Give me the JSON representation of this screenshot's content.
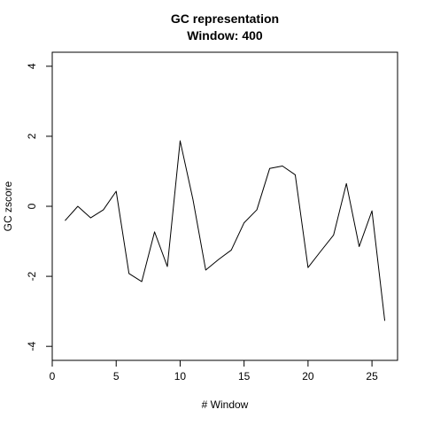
{
  "chart_data": {
    "type": "line",
    "title": "GC representation",
    "subtitle": "Window: 400",
    "xlabel": "# Window",
    "ylabel": "GC zscore",
    "xlim": [
      0,
      27
    ],
    "ylim": [
      -4.4,
      4.4
    ],
    "xticks": [
      0,
      5,
      10,
      15,
      20,
      25
    ],
    "yticks": [
      -4,
      -2,
      0,
      2,
      4
    ],
    "x": [
      1,
      2,
      3,
      4,
      5,
      6,
      7,
      8,
      9,
      10,
      11,
      12,
      13,
      14,
      15,
      16,
      17,
      18,
      19,
      20,
      21,
      22,
      23,
      24,
      25,
      26
    ],
    "series": [
      {
        "name": "",
        "color": "#000000",
        "values": [
          -0.41,
          0.0,
          -0.33,
          -0.1,
          0.43,
          -1.92,
          -2.15,
          -0.73,
          -1.72,
          1.87,
          0.2,
          -1.82,
          -1.52,
          -1.25,
          -0.47,
          -0.1,
          1.08,
          1.15,
          0.9,
          -1.75,
          -1.28,
          -0.82,
          0.65,
          -1.15,
          -0.13,
          -3.27
        ]
      }
    ],
    "grid": false,
    "legend": "none"
  }
}
